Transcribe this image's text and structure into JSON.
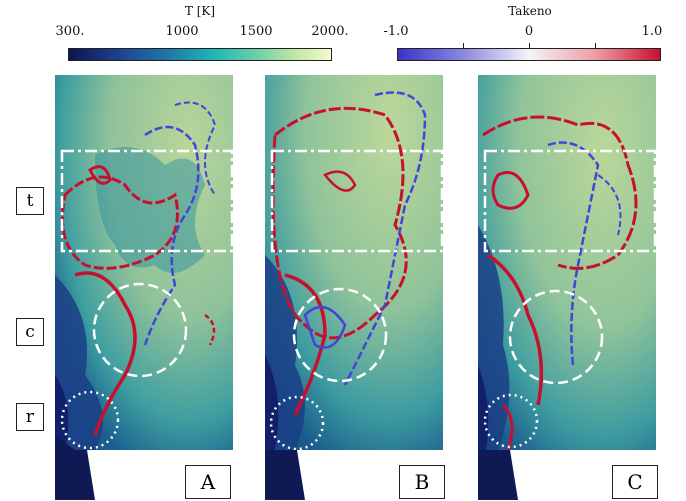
{
  "colorbars": {
    "temperature": {
      "title": "T [K]",
      "ticks": [
        "300.",
        "1000",
        "1500",
        "2000."
      ]
    },
    "takeno": {
      "title": "Takeno",
      "ticks": [
        "-1.0",
        "0",
        "1.0"
      ]
    }
  },
  "colors": {
    "flame_positive": "#c8102e",
    "flame_negative": "#4444d8",
    "highlight_box": "#ffffff"
  },
  "region_labels": [
    "t",
    "c",
    "r"
  ],
  "panels": [
    "A",
    "B",
    "C"
  ]
}
